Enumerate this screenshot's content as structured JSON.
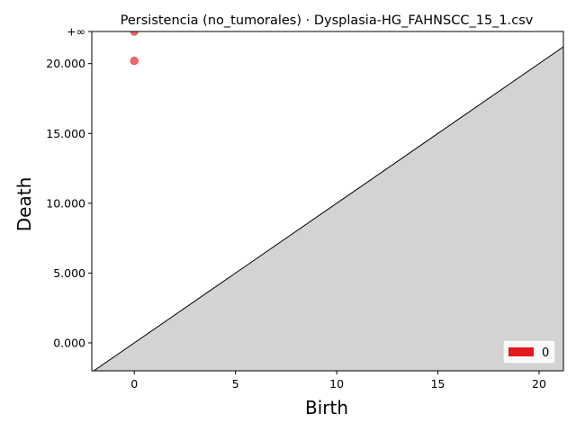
{
  "chart_data": {
    "type": "scatter",
    "title": "Persistencia (no_tumorales) · Dysplasia-HG_FAHNSCC_15_1.csv",
    "xlabel": "Birth",
    "ylabel": "Death",
    "xlim": [
      -2.1,
      21.2
    ],
    "ylim": [
      -2.0,
      22.3
    ],
    "x_ticks": [
      {
        "value": 0,
        "label": "0"
      },
      {
        "value": 5,
        "label": "5"
      },
      {
        "value": 10,
        "label": "10"
      },
      {
        "value": 15,
        "label": "15"
      },
      {
        "value": 20,
        "label": "20"
      }
    ],
    "y_ticks": [
      {
        "value": 0,
        "label": "0.000"
      },
      {
        "value": 5,
        "label": "5.000"
      },
      {
        "value": 10,
        "label": "10.000"
      },
      {
        "value": 15,
        "label": "15.000"
      },
      {
        "value": 20,
        "label": "20.000"
      },
      {
        "value": 22.3,
        "label": "+∞"
      }
    ],
    "infinity_level": 22.3,
    "diagonal": true,
    "shaded_region": "below-diagonal",
    "grid": false,
    "legend_position": "bottom-right",
    "series": [
      {
        "name": "0",
        "color": "#e31a1c",
        "points": [
          {
            "x": 0,
            "y": 22.3
          },
          {
            "x": 0,
            "y": 20.2
          }
        ]
      }
    ],
    "colors": {
      "shade": "#d3d3d3",
      "infinity_line": "#666666",
      "diagonal": "#000000"
    }
  }
}
